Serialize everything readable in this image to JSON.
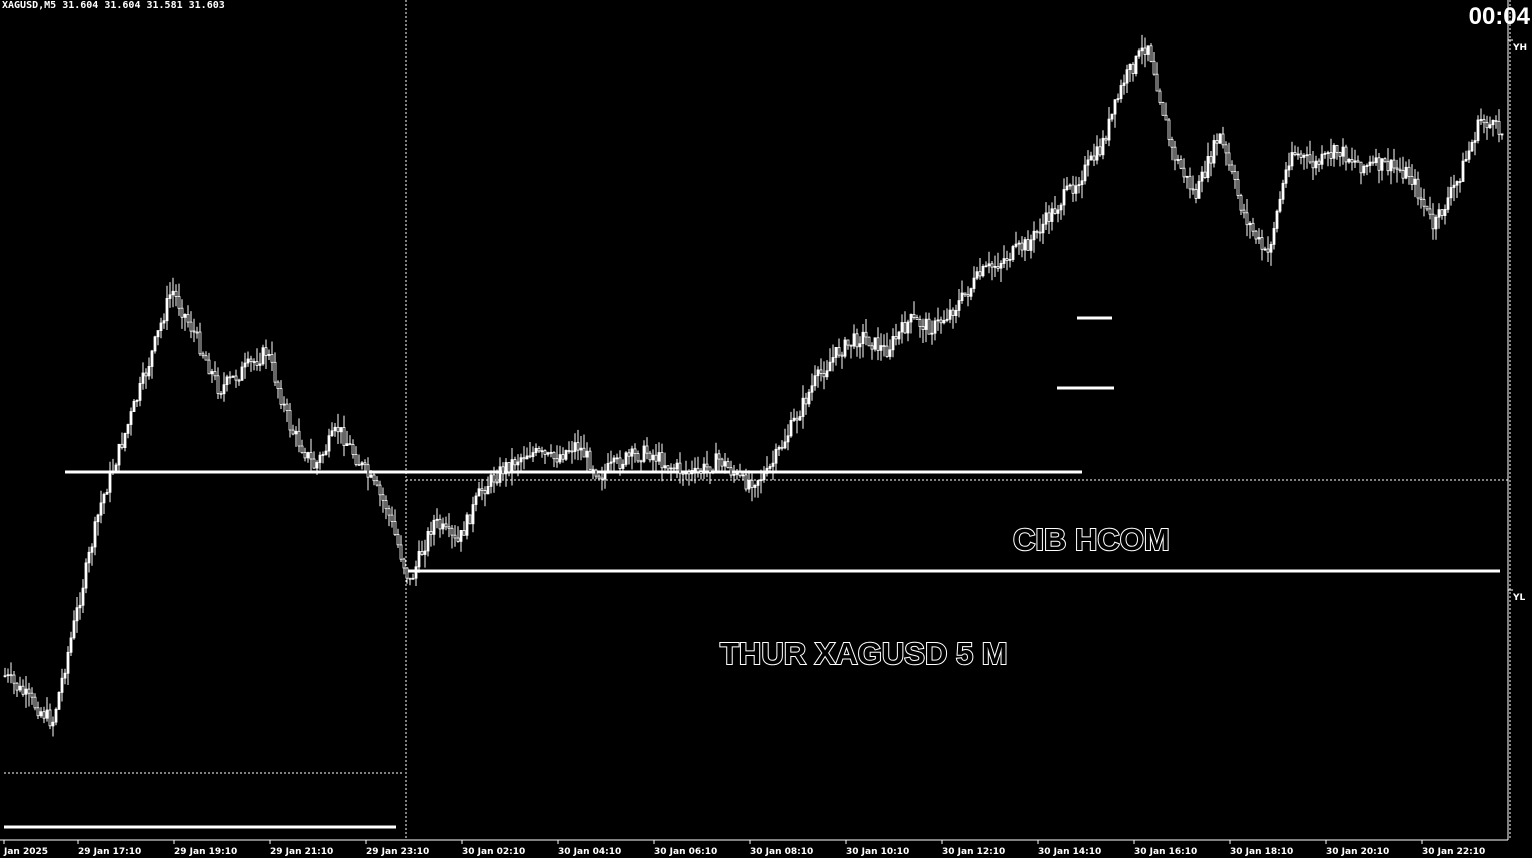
{
  "header": {
    "ohlc_text": "XAGUSD,M5  31.604 31.604 31.581 31.603",
    "timer": "00:04"
  },
  "annotations": {
    "line1": "CIB   HCOM",
    "line2": "THUR   XAGUSD 5 M"
  },
  "axis": {
    "side_top": "YH",
    "side_bottom": "YL"
  },
  "colors": {
    "background": "#000000",
    "foreground": "#ffffff"
  },
  "chart_data": {
    "type": "candlestick",
    "symbol": "XAGUSD",
    "timeframe": "M5",
    "x_ticks": [
      "Jan 2025",
      "29 Jan 17:10",
      "29 Jan 19:10",
      "29 Jan 21:10",
      "29 Jan 23:10",
      "30 Jan 02:10",
      "30 Jan 04:10",
      "30 Jan 06:10",
      "30 Jan 08:10",
      "30 Jan 10:10",
      "30 Jan 12:10",
      "30 Jan 14:10",
      "30 Jan 16:10",
      "30 Jan 18:10",
      "30 Jan 20:10",
      "30 Jan 22:10"
    ],
    "grid": false,
    "price_path_description": "price shown only as relative levels; y axis prices are not printed",
    "path_points": [
      [
        0,
        0.18
      ],
      [
        4,
        0.12
      ],
      [
        8,
        0.4
      ],
      [
        12,
        0.58
      ],
      [
        14,
        0.68
      ],
      [
        16,
        0.62
      ],
      [
        18,
        0.55
      ],
      [
        22,
        0.6
      ],
      [
        24,
        0.5
      ],
      [
        26,
        0.45
      ],
      [
        28,
        0.5
      ],
      [
        30,
        0.45
      ],
      [
        32,
        0.4
      ],
      [
        34,
        0.3
      ],
      [
        36,
        0.38
      ],
      [
        38,
        0.35
      ],
      [
        40,
        0.42
      ],
      [
        42,
        0.45
      ],
      [
        44,
        0.47
      ],
      [
        46,
        0.46
      ],
      [
        48,
        0.48
      ],
      [
        50,
        0.44
      ],
      [
        52,
        0.46
      ],
      [
        54,
        0.47
      ],
      [
        56,
        0.45
      ],
      [
        58,
        0.44
      ],
      [
        60,
        0.46
      ],
      [
        62,
        0.43
      ],
      [
        64,
        0.44
      ],
      [
        66,
        0.5
      ],
      [
        68,
        0.56
      ],
      [
        70,
        0.6
      ],
      [
        72,
        0.62
      ],
      [
        74,
        0.6
      ],
      [
        76,
        0.64
      ],
      [
        78,
        0.63
      ],
      [
        80,
        0.66
      ],
      [
        82,
        0.7
      ],
      [
        84,
        0.72
      ],
      [
        86,
        0.74
      ],
      [
        88,
        0.78
      ],
      [
        90,
        0.82
      ],
      [
        92,
        0.86
      ],
      [
        94,
        0.95
      ],
      [
        96,
        1.0
      ],
      [
        98,
        0.86
      ],
      [
        100,
        0.8
      ],
      [
        102,
        0.88
      ],
      [
        104,
        0.78
      ],
      [
        106,
        0.72
      ],
      [
        108,
        0.86
      ],
      [
        110,
        0.84
      ],
      [
        112,
        0.86
      ],
      [
        114,
        0.84
      ],
      [
        116,
        0.84
      ],
      [
        118,
        0.83
      ],
      [
        120,
        0.76
      ],
      [
        122,
        0.82
      ],
      [
        124,
        0.9
      ],
      [
        126,
        0.88
      ]
    ],
    "levels": [
      {
        "name": "high_line",
        "value": 0.66
      },
      {
        "name": "mid_line",
        "value": 0.48
      },
      {
        "name": "low_line",
        "value": 0.0
      }
    ]
  }
}
